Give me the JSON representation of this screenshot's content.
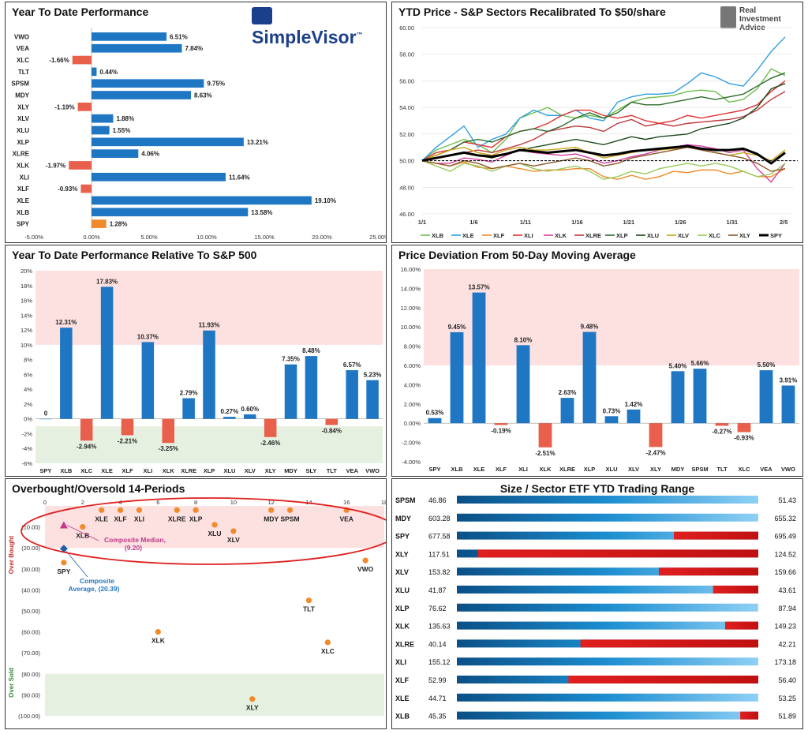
{
  "panel1": {
    "title": "Year To Date Performance",
    "logo": "SimpleVisor",
    "logo_tm": "™"
  },
  "panel2": {
    "title": "YTD Price - S&P Sectors Recalibrated To $50/share",
    "logo_line1": "Real",
    "logo_line2": "Investment",
    "logo_line3": "Advice"
  },
  "panel3": {
    "title": "Year To Date Performance Relative To S&P 500"
  },
  "panel4": {
    "title": "Price Deviation From 50-Day Moving Average"
  },
  "panel5": {
    "title": "Overbought/Oversold 14-Periods",
    "side_overbought": "Over Bought",
    "side_oversold": "Over Sold",
    "median_label_1": "Composite Median,",
    "median_label_2": "(9.20)",
    "average_label_1": "Composite",
    "average_label_2": "Average,  (20.39)"
  },
  "panel6": {
    "title": "Size / Sector ETF YTD Trading Range"
  },
  "colors": {
    "blue": "#1f77c4",
    "salmon": "#e8604c",
    "orange": "#f08a2c",
    "red": "#e01f1f",
    "pink_zone": "#fde0e0",
    "green_zone": "#e6f0e0"
  },
  "chart_data": [
    {
      "type": "bar",
      "orientation": "horizontal",
      "title": "Year To Date Performance",
      "categories": [
        "VWO",
        "VEA",
        "XLC",
        "TLT",
        "SPSM",
        "MDY",
        "XLY",
        "XLV",
        "XLU",
        "XLP",
        "XLRE",
        "XLK",
        "XLI",
        "XLF",
        "XLE",
        "XLB",
        "SPY"
      ],
      "values": [
        6.51,
        7.84,
        -1.66,
        0.44,
        9.75,
        8.63,
        -1.19,
        1.88,
        1.55,
        13.21,
        4.06,
        -1.97,
        11.64,
        -0.93,
        19.1,
        13.58,
        1.28
      ],
      "value_labels": [
        "6.51%",
        "7.84%",
        "-1.66%",
        "0.44%",
        "9.75%",
        "8.63%",
        "-1.19%",
        "1.88%",
        "1.55%",
        "13.21%",
        "4.06%",
        "-1.97%",
        "11.64%",
        "-0.93%",
        "19.10%",
        "13.58%",
        "1.28%"
      ],
      "xlim": [
        -5,
        25
      ],
      "xticks": [
        "-5.00%",
        "0.00%",
        "5.00%",
        "10.00%",
        "15.00%",
        "20.00%",
        "25.00%"
      ]
    },
    {
      "type": "line",
      "title": "YTD Price - S&P Sectors Recalibrated To $50/share",
      "ylim": [
        46,
        60
      ],
      "yticks": [
        "46.00",
        "48.00",
        "50.00",
        "52.00",
        "54.00",
        "56.00",
        "58.00",
        "60.00"
      ],
      "xticks": [
        "1/1",
        "1/6",
        "1/11",
        "1/16",
        "1/21",
        "1/26",
        "1/31",
        "2/5"
      ],
      "baseline": 50,
      "series": [
        {
          "name": "XLB",
          "color": "#6cbf4a",
          "values": [
            50,
            50.8,
            51.2,
            51.6,
            51.2,
            50.6,
            51.6,
            53.2,
            53.6,
            54,
            53.4,
            53.2,
            53.4,
            53.2,
            53.8,
            54.4,
            54.7,
            54.8,
            54.9,
            55.2,
            55.3,
            55.2,
            54.4,
            54.6,
            55.4,
            56.9,
            56.4
          ]
        },
        {
          "name": "XLE",
          "color": "#2f9fe0",
          "values": [
            50,
            51,
            51.8,
            52.6,
            51,
            51.6,
            52,
            53.2,
            53.8,
            53.4,
            53.4,
            53.8,
            53.2,
            53,
            54.4,
            54.8,
            55,
            55,
            55.1,
            55.8,
            56.6,
            56.3,
            55.8,
            55.6,
            56.8,
            58.2,
            59.3
          ]
        },
        {
          "name": "XLF",
          "color": "#f08a2c",
          "values": [
            50,
            49.8,
            49.6,
            49.9,
            49.5,
            49.4,
            49.6,
            49.4,
            49.2,
            49.3,
            49.3,
            49.4,
            49.4,
            48.8,
            48.6,
            48.9,
            48.6,
            48.8,
            49.2,
            49.1,
            49.3,
            49.3,
            49.0,
            49.2,
            48.8,
            48.8,
            49.4
          ]
        },
        {
          "name": "XLI",
          "color": "#e23030",
          "values": [
            50,
            50.6,
            50.8,
            51.4,
            51.2,
            51,
            51.8,
            52.2,
            52.4,
            52.8,
            53.4,
            53.8,
            53.8,
            53.4,
            53.2,
            53.4,
            53,
            52.8,
            53,
            53.4,
            53.2,
            53.4,
            53.6,
            53.8,
            54.2,
            55.2,
            56
          ]
        },
        {
          "name": "XLK",
          "color": "#d63fa0",
          "values": [
            50,
            49.8,
            49.8,
            50.2,
            50.1,
            49.9,
            50.4,
            50.8,
            50.6,
            50.5,
            50.4,
            50.5,
            50.2,
            49.8,
            50,
            50.3,
            50.5,
            50.8,
            51,
            51.2,
            51.1,
            50.9,
            50.6,
            50.8,
            49.4,
            48.4,
            49.8
          ]
        },
        {
          "name": "XLRE",
          "color": "#c0393b",
          "values": [
            50,
            50.2,
            50.4,
            50.6,
            50.8,
            50.6,
            50.9,
            51.2,
            51.6,
            52.2,
            52.4,
            52.6,
            52.5,
            52.2,
            52.8,
            53.1,
            52.6,
            52.8,
            52.6,
            52.8,
            52.9,
            53,
            53.1,
            53.3,
            53.8,
            54.6,
            55.2
          ]
        },
        {
          "name": "XLP",
          "color": "#2d6b2d",
          "values": [
            50,
            50.4,
            50.8,
            51.4,
            51.6,
            51.4,
            51.8,
            52.2,
            52.4,
            52.2,
            52.6,
            53.2,
            53.6,
            53.2,
            53.6,
            54.4,
            54.2,
            54.2,
            54.4,
            54.6,
            54.8,
            54.6,
            54.8,
            55,
            55.6,
            56.2,
            56.6
          ]
        },
        {
          "name": "XLU",
          "color": "#1e4a1e",
          "values": [
            50,
            50.2,
            50.4,
            50.6,
            50.4,
            50.2,
            50.5,
            50.8,
            51,
            51.2,
            51.4,
            51.6,
            51.4,
            51.2,
            51.5,
            51.8,
            51.6,
            51.8,
            51.9,
            52,
            52.4,
            52.6,
            52.8,
            53.2,
            54,
            55.4,
            55.8
          ]
        },
        {
          "name": "XLV",
          "color": "#c9a51a",
          "values": [
            50,
            50.4,
            50.8,
            51,
            50.6,
            50.4,
            50.8,
            51,
            50.8,
            50.8,
            50.9,
            51,
            50.6,
            50.2,
            50.4,
            50.6,
            50.8,
            50.8,
            50.9,
            51,
            50.8,
            50.6,
            50.4,
            50.6,
            50.4,
            50,
            50.8
          ]
        },
        {
          "name": "XLC",
          "color": "#9acb5a",
          "values": [
            50,
            49.6,
            49.2,
            49.8,
            49.6,
            49.2,
            49.6,
            49.8,
            49.4,
            49.2,
            49.4,
            49.6,
            49.2,
            48.6,
            48.8,
            49.2,
            49,
            49.4,
            49.6,
            49.8,
            49.6,
            49.8,
            49.6,
            49.2,
            48.8,
            49,
            49.8
          ]
        },
        {
          "name": "XLY",
          "color": "#8a5a2a",
          "values": [
            50,
            49.8,
            49.6,
            50,
            49.8,
            49.4,
            49.6,
            49.8,
            49.6,
            49.8,
            50,
            50.2,
            50,
            49.6,
            49.8,
            50.2,
            50.4,
            50.6,
            50.8,
            51,
            50.8,
            50.6,
            50.4,
            50.2,
            49.8,
            49.2,
            49.4
          ]
        },
        {
          "name": "SPY",
          "color": "#000000",
          "values": [
            50,
            50.2,
            50.4,
            50.6,
            50.4,
            50.3,
            50.5,
            50.8,
            50.7,
            50.6,
            50.7,
            50.8,
            50.6,
            50.4,
            50.5,
            50.7,
            50.8,
            50.9,
            51,
            51.1,
            50.9,
            50.8,
            50.8,
            50.9,
            50.5,
            49.8,
            50.6
          ]
        }
      ]
    },
    {
      "type": "bar",
      "title": "Year To Date Performance Relative To S&P 500",
      "categories": [
        "SPY",
        "XLB",
        "XLC",
        "XLE",
        "XLF",
        "XLI",
        "XLK",
        "XLRE",
        "XLP",
        "XLU",
        "XLV",
        "XLY",
        "MDY",
        "SLY",
        "TLT",
        "VEA",
        "VWO"
      ],
      "values": [
        0,
        12.31,
        -2.94,
        17.83,
        -2.21,
        10.37,
        -3.25,
        2.79,
        11.93,
        0.27,
        0.6,
        -2.46,
        7.35,
        8.48,
        -0.84,
        6.57,
        5.23
      ],
      "value_labels": [
        "0",
        "12.31%",
        "-2.94%",
        "17.83%",
        "-2.21%",
        "10.37%",
        "-3.25%",
        "2.79%",
        "11.93%",
        "0.27%",
        "0.60%",
        "-2.46%",
        "7.35%",
        "8.48%",
        "-0.84%",
        "6.57%",
        "5.23%"
      ],
      "ylim": [
        -6,
        20
      ],
      "yticks": [
        "-6%",
        "-4%",
        "-2%",
        "0%",
        "2%",
        "4%",
        "6%",
        "8%",
        "10%",
        "12%",
        "14%",
        "16%",
        "18%",
        "20%"
      ]
    },
    {
      "type": "bar",
      "title": "Price Deviation From 50-Day Moving Average",
      "categories": [
        "SPY",
        "XLB",
        "XLE",
        "XLF",
        "XLI",
        "XLK",
        "XLRE",
        "XLP",
        "XLU",
        "XLV",
        "XLY",
        "MDY",
        "SPSM",
        "TLT",
        "XLC",
        "VEA",
        "VWO"
      ],
      "values": [
        0.53,
        9.45,
        13.57,
        -0.19,
        8.1,
        -2.51,
        2.63,
        9.48,
        0.73,
        1.42,
        -2.47,
        5.4,
        5.66,
        -0.27,
        -0.93,
        5.5,
        3.91
      ],
      "value_labels": [
        "0.53%",
        "9.45%",
        "13.57%",
        "-0.19%",
        "8.10%",
        "-2.51%",
        "2.63%",
        "9.48%",
        "0.73%",
        "1.42%",
        "-2.47%",
        "5.40%",
        "5.66%",
        "-0.27%",
        "-0.93%",
        "5.50%",
        "3.91%"
      ],
      "ylim": [
        -4,
        16
      ],
      "yticks": [
        "-4.00%",
        "-2.00%",
        "0.00%",
        "2.00%",
        "4.00%",
        "6.00%",
        "8.00%",
        "10.00%",
        "12.00%",
        "14.00%",
        "16.00%"
      ]
    },
    {
      "type": "scatter",
      "title": "Overbought/Oversold 14-Periods",
      "xlim": [
        0,
        18
      ],
      "ylim": [
        0,
        -100
      ],
      "xticks": [
        "0",
        "2",
        "4",
        "6",
        "8",
        "10",
        "12",
        "14",
        "16",
        "18"
      ],
      "yticks": [
        "(10.00)",
        "(20.00)",
        "(30.00)",
        "(40.00)",
        "(50.00)",
        "(60.00)",
        "(70.00)",
        "(80.00)",
        "(90.00)",
        "(100.00)"
      ],
      "points": [
        {
          "label": "XLE",
          "x": 3,
          "y": -2
        },
        {
          "label": "XLF",
          "x": 4,
          "y": -2
        },
        {
          "label": "XLI",
          "x": 5,
          "y": -2
        },
        {
          "label": "XLRE",
          "x": 7,
          "y": -2
        },
        {
          "label": "XLP",
          "x": 8,
          "y": -2
        },
        {
          "label": "MDY",
          "x": 12,
          "y": -2
        },
        {
          "label": "SPSM",
          "x": 13,
          "y": -2
        },
        {
          "label": "VEA",
          "x": 16,
          "y": -2
        },
        {
          "label": "XLB",
          "x": 2,
          "y": -10
        },
        {
          "label": "XLU",
          "x": 9,
          "y": -9
        },
        {
          "label": "XLV",
          "x": 10,
          "y": -12
        },
        {
          "label": "SPY",
          "x": 1,
          "y": -27
        },
        {
          "label": "VWO",
          "x": 17,
          "y": -26
        },
        {
          "label": "TLT",
          "x": 14,
          "y": -45
        },
        {
          "label": "XLK",
          "x": 6,
          "y": -60
        },
        {
          "label": "XLC",
          "x": 15,
          "y": -65
        },
        {
          "label": "XLY",
          "x": 11,
          "y": -92
        }
      ],
      "composite_median": {
        "x": 1,
        "y": -9.2
      },
      "composite_average": {
        "x": 1,
        "y": -20.39
      }
    },
    {
      "type": "table",
      "title": "Size / Sector ETF YTD Trading Range",
      "rows": [
        {
          "ticker": "SPSM",
          "low": "46.86",
          "high": "51.43",
          "position": 1.0
        },
        {
          "ticker": "MDY",
          "low": "603.28",
          "high": "655.32",
          "position": 1.0
        },
        {
          "ticker": "SPY",
          "low": "677.58",
          "high": "695.49",
          "position": 0.72
        },
        {
          "ticker": "XLY",
          "low": "117.51",
          "high": "124.52",
          "position": 0.07
        },
        {
          "ticker": "XLV",
          "low": "153.82",
          "high": "159.66",
          "position": 0.67
        },
        {
          "ticker": "XLU",
          "low": "41.87",
          "high": "43.61",
          "position": 0.85
        },
        {
          "ticker": "XLP",
          "low": "76.62",
          "high": "87.94",
          "position": 1.0
        },
        {
          "ticker": "XLK",
          "low": "135.63",
          "high": "149.23",
          "position": 0.89
        },
        {
          "ticker": "XLRE",
          "low": "40.14",
          "high": "42.21",
          "position": 0.41
        },
        {
          "ticker": "XLI",
          "low": "155.12",
          "high": "173.18",
          "position": 1.0
        },
        {
          "ticker": "XLF",
          "low": "52.99",
          "high": "56.40",
          "position": 0.37
        },
        {
          "ticker": "XLE",
          "low": "44.71",
          "high": "53.25",
          "position": 1.0
        },
        {
          "ticker": "XLB",
          "low": "45.35",
          "high": "51.89",
          "position": 0.94
        }
      ]
    }
  ]
}
